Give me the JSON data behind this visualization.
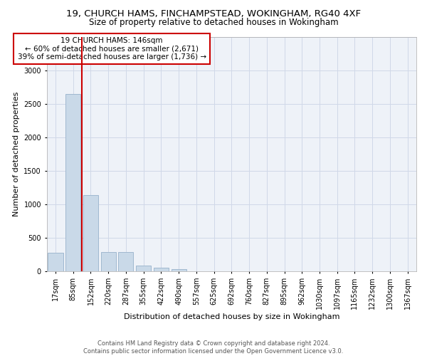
{
  "title_line1": "19, CHURCH HAMS, FINCHAMPSTEAD, WOKINGHAM, RG40 4XF",
  "title_line2": "Size of property relative to detached houses in Wokingham",
  "xlabel": "Distribution of detached houses by size in Wokingham",
  "ylabel": "Number of detached properties",
  "bar_color": "#c9d9e8",
  "bar_edge_color": "#a0b8d0",
  "categories": [
    "17sqm",
    "85sqm",
    "152sqm",
    "220sqm",
    "287sqm",
    "355sqm",
    "422sqm",
    "490sqm",
    "557sqm",
    "625sqm",
    "692sqm",
    "760sqm",
    "827sqm",
    "895sqm",
    "962sqm",
    "1030sqm",
    "1097sqm",
    "1165sqm",
    "1232sqm",
    "1300sqm",
    "1367sqm"
  ],
  "values": [
    275,
    2650,
    1140,
    285,
    285,
    90,
    55,
    40,
    0,
    0,
    0,
    0,
    0,
    0,
    0,
    0,
    0,
    0,
    0,
    0,
    0
  ],
  "vline_x": 1.5,
  "vline_color": "#cc0000",
  "annotation_text": "19 CHURCH HAMS: 146sqm\n← 60% of detached houses are smaller (2,671)\n39% of semi-detached houses are larger (1,736) →",
  "annotation_box_edgecolor": "#cc0000",
  "ylim": [
    0,
    3500
  ],
  "yticks": [
    0,
    500,
    1000,
    1500,
    2000,
    2500,
    3000,
    3500
  ],
  "grid_color": "#d0d8e8",
  "background_color": "#eef2f8",
  "footer_text": "Contains HM Land Registry data © Crown copyright and database right 2024.\nContains public sector information licensed under the Open Government Licence v3.0.",
  "title_fontsize": 9.5,
  "subtitle_fontsize": 8.5,
  "axis_label_fontsize": 8,
  "tick_fontsize": 7,
  "footer_fontsize": 6,
  "annotation_fontsize": 7.5
}
